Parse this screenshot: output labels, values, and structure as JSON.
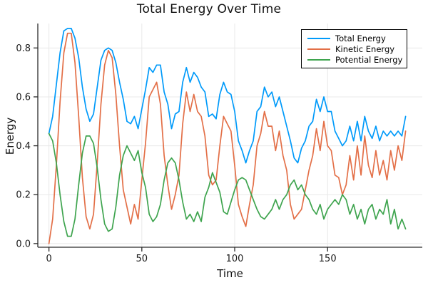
{
  "title": "Total Energy Over Time",
  "axes": {
    "xlabel": "Time",
    "ylabel": "Energy"
  },
  "colors": {
    "total": "#009AFA",
    "kinetic": "#E36F47",
    "potential": "#3EA44E",
    "grid": "#E8E8E8",
    "spine": "#2B2B2B",
    "tick_text": "#1A1A1A"
  },
  "chart_data": {
    "type": "line",
    "title": "Total Energy Over Time",
    "xlabel": "Time",
    "ylabel": "Energy",
    "xlim": [
      -6,
      201
    ],
    "ylim": [
      -0.015,
      0.9
    ],
    "grid": true,
    "legend_position": "top-right",
    "xticks": {
      "values": [
        0,
        50,
        100,
        150
      ],
      "labels": [
        "0",
        "50",
        "100",
        "150"
      ]
    },
    "yticks": {
      "values": [
        0.0,
        0.2,
        0.4,
        0.6,
        0.8
      ],
      "labels": [
        "0.0",
        "0.2",
        "0.4",
        "0.6",
        "0.8"
      ]
    },
    "x": [
      0,
      2,
      4,
      6,
      8,
      10,
      12,
      14,
      16,
      18,
      20,
      22,
      24,
      26,
      28,
      30,
      32,
      34,
      36,
      38,
      40,
      42,
      44,
      46,
      48,
      50,
      52,
      54,
      56,
      58,
      60,
      62,
      64,
      66,
      68,
      70,
      72,
      74,
      76,
      78,
      80,
      82,
      84,
      86,
      88,
      90,
      92,
      94,
      96,
      98,
      100,
      102,
      104,
      106,
      108,
      110,
      112,
      114,
      116,
      118,
      120,
      122,
      124,
      126,
      128,
      130,
      132,
      134,
      136,
      138,
      140,
      142,
      144,
      146,
      148,
      150,
      152,
      154,
      156,
      158,
      160,
      162,
      164,
      166,
      168,
      170,
      172,
      174,
      176,
      178,
      180,
      182,
      184,
      186,
      188,
      190,
      192
    ],
    "series": [
      {
        "name": "Total Energy",
        "color": "#009AFA",
        "values": [
          0.45,
          0.52,
          0.65,
          0.78,
          0.87,
          0.88,
          0.88,
          0.84,
          0.76,
          0.64,
          0.55,
          0.5,
          0.53,
          0.64,
          0.75,
          0.79,
          0.8,
          0.79,
          0.74,
          0.66,
          0.59,
          0.5,
          0.49,
          0.52,
          0.47,
          0.55,
          0.63,
          0.72,
          0.7,
          0.73,
          0.73,
          0.62,
          0.57,
          0.47,
          0.53,
          0.54,
          0.66,
          0.72,
          0.66,
          0.7,
          0.68,
          0.64,
          0.62,
          0.52,
          0.53,
          0.51,
          0.61,
          0.66,
          0.62,
          0.61,
          0.54,
          0.42,
          0.38,
          0.33,
          0.38,
          0.42,
          0.54,
          0.56,
          0.64,
          0.6,
          0.62,
          0.56,
          0.6,
          0.54,
          0.48,
          0.42,
          0.35,
          0.33,
          0.39,
          0.42,
          0.48,
          0.5,
          0.59,
          0.54,
          0.6,
          0.54,
          0.54,
          0.46,
          0.43,
          0.4,
          0.42,
          0.48,
          0.42,
          0.5,
          0.42,
          0.52,
          0.46,
          0.43,
          0.48,
          0.42,
          0.46,
          0.44,
          0.46,
          0.44,
          0.46,
          0.44,
          0.52
        ]
      },
      {
        "name": "Kinetic Energy",
        "color": "#E36F47",
        "values": [
          0.0,
          0.1,
          0.32,
          0.58,
          0.78,
          0.86,
          0.86,
          0.74,
          0.52,
          0.27,
          0.11,
          0.06,
          0.12,
          0.33,
          0.57,
          0.73,
          0.79,
          0.76,
          0.61,
          0.4,
          0.22,
          0.15,
          0.08,
          0.16,
          0.1,
          0.26,
          0.41,
          0.6,
          0.63,
          0.66,
          0.57,
          0.36,
          0.24,
          0.14,
          0.2,
          0.28,
          0.49,
          0.62,
          0.54,
          0.61,
          0.54,
          0.52,
          0.44,
          0.28,
          0.24,
          0.26,
          0.4,
          0.52,
          0.49,
          0.46,
          0.32,
          0.16,
          0.11,
          0.07,
          0.16,
          0.24,
          0.4,
          0.45,
          0.54,
          0.48,
          0.48,
          0.38,
          0.46,
          0.36,
          0.3,
          0.16,
          0.1,
          0.12,
          0.14,
          0.22,
          0.3,
          0.36,
          0.47,
          0.38,
          0.5,
          0.4,
          0.38,
          0.28,
          0.27,
          0.2,
          0.24,
          0.36,
          0.26,
          0.4,
          0.28,
          0.44,
          0.32,
          0.27,
          0.38,
          0.28,
          0.34,
          0.26,
          0.38,
          0.3,
          0.4,
          0.34,
          0.46
        ]
      },
      {
        "name": "Potential Energy",
        "color": "#3EA44E",
        "values": [
          0.45,
          0.42,
          0.33,
          0.2,
          0.09,
          0.03,
          0.03,
          0.1,
          0.24,
          0.37,
          0.44,
          0.44,
          0.41,
          0.31,
          0.18,
          0.08,
          0.05,
          0.06,
          0.15,
          0.28,
          0.36,
          0.4,
          0.37,
          0.34,
          0.38,
          0.29,
          0.23,
          0.12,
          0.09,
          0.11,
          0.16,
          0.26,
          0.33,
          0.35,
          0.33,
          0.26,
          0.17,
          0.1,
          0.12,
          0.09,
          0.13,
          0.09,
          0.19,
          0.23,
          0.29,
          0.25,
          0.21,
          0.13,
          0.12,
          0.17,
          0.22,
          0.26,
          0.27,
          0.26,
          0.22,
          0.18,
          0.14,
          0.11,
          0.1,
          0.12,
          0.14,
          0.18,
          0.14,
          0.18,
          0.2,
          0.24,
          0.26,
          0.22,
          0.24,
          0.2,
          0.18,
          0.14,
          0.12,
          0.16,
          0.1,
          0.14,
          0.16,
          0.18,
          0.16,
          0.2,
          0.18,
          0.12,
          0.16,
          0.1,
          0.14,
          0.08,
          0.14,
          0.16,
          0.1,
          0.14,
          0.12,
          0.18,
          0.08,
          0.14,
          0.06,
          0.1,
          0.06
        ]
      }
    ]
  }
}
